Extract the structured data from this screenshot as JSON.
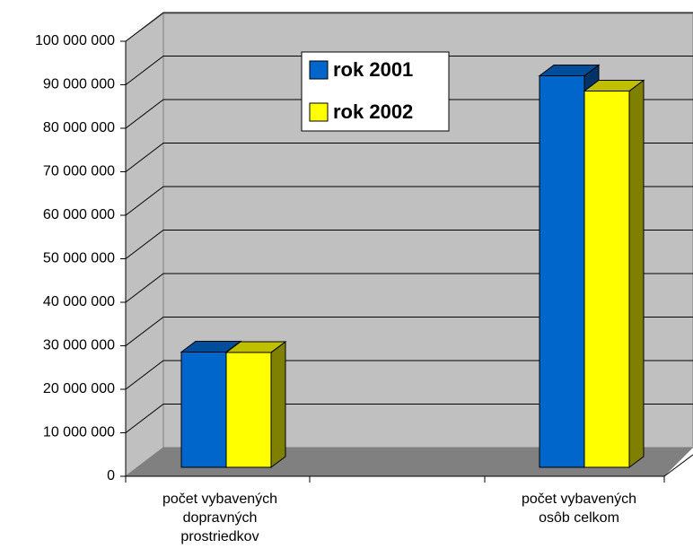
{
  "chart_data": {
    "type": "bar3d",
    "categories": [
      "počet vybavených dopravných prostriedkov",
      "počet vybavených osôb celkom"
    ],
    "series": [
      {
        "name": "rok 2001",
        "color": "#0066cc",
        "values": [
          26500000,
          90000000
        ]
      },
      {
        "name": "rok 2002",
        "color": "#ffff00",
        "values": [
          26400000,
          86500000
        ]
      }
    ],
    "ylim": [
      0,
      100000000
    ],
    "yticks": [
      {
        "value": 0,
        "label": "0"
      },
      {
        "value": 10000000,
        "label": "10 000 000"
      },
      {
        "value": 20000000,
        "label": "20 000 000"
      },
      {
        "value": 30000000,
        "label": "30 000 000"
      },
      {
        "value": 40000000,
        "label": "40 000 000"
      },
      {
        "value": 50000000,
        "label": "50 000 000"
      },
      {
        "value": 60000000,
        "label": "60 000 000"
      },
      {
        "value": 70000000,
        "label": "70 000 000"
      },
      {
        "value": 80000000,
        "label": "80 000 000"
      },
      {
        "value": 90000000,
        "label": "90 000 000"
      },
      {
        "value": 100000000,
        "label": "100 000 000"
      }
    ],
    "grid": true,
    "legend": "top"
  }
}
